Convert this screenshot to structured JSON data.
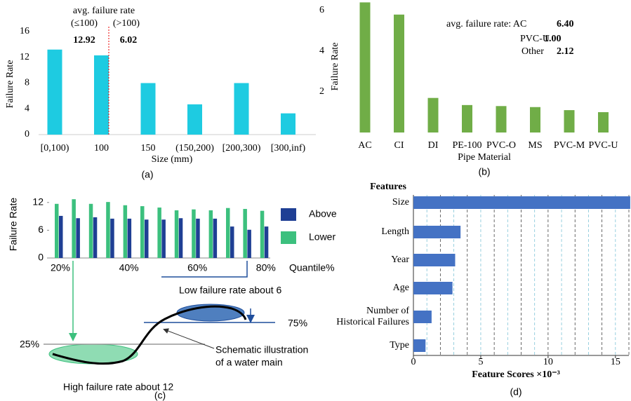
{
  "chart_data": [
    {
      "type": "bar",
      "ylabel": "Failure Rate",
      "xlabel": "Size (mm)",
      "caption": "(a)",
      "categories": [
        "[0,100)",
        "100",
        "150",
        "(150,200)",
        "[200,300)",
        "[300,inf)"
      ],
      "values": [
        13.2,
        12.3,
        8.0,
        4.7,
        8.0,
        3.3
      ],
      "color": "#1ecbe1",
      "ylim": [
        0,
        16
      ],
      "yticks": [
        0,
        4,
        8,
        12,
        16
      ],
      "annotations": [
        "avg. failure rate",
        "(≤100)",
        "(>100)",
        "12.92",
        "6.02"
      ]
    },
    {
      "type": "bar",
      "ylabel": "Failure Rate",
      "xlabel": "Pipe Material",
      "caption": "(b)",
      "categories": [
        "AC",
        "CI",
        "DI",
        "PE-100",
        "PVC-O",
        "MS",
        "PVC-M",
        "PVC-U"
      ],
      "values": [
        6.4,
        5.8,
        1.7,
        1.35,
        1.3,
        1.25,
        1.1,
        1.0
      ],
      "color": "#70ad47",
      "ylim": [
        0,
        6.5
      ],
      "yticks": [
        2,
        4,
        6
      ],
      "annotations": [
        "avg. failure rate: AC",
        "6.40",
        "PVC-U",
        "1.00",
        "Other",
        "2.12"
      ]
    },
    {
      "type": "grouped_bar",
      "ylabel": "Failure Rate",
      "xlabel": "Quantile%",
      "caption": "(c)",
      "categories": [
        "20%",
        null,
        null,
        null,
        "40%",
        null,
        null,
        null,
        "60%",
        null,
        null,
        null,
        "80%"
      ],
      "series": [
        {
          "name": "Above",
          "color": "#1f3f94",
          "values": [
            9.1,
            8.6,
            8.8,
            8.5,
            8.5,
            8.3,
            8.3,
            8.6,
            8.5,
            8.5,
            6.8,
            6.1,
            6.8
          ]
        },
        {
          "name": "Lower",
          "color": "#3cc07e",
          "values": [
            11.7,
            12.7,
            11.7,
            12.1,
            11.4,
            11.2,
            10.9,
            10.3,
            10.5,
            10.3,
            10.8,
            10.6,
            10.2
          ]
        }
      ],
      "ylim": [
        0,
        13.5
      ],
      "yticks": [
        0,
        6,
        12
      ],
      "annotations": [
        "Low failure rate about 6",
        "75%",
        "25%",
        "Schematic illustration",
        "of a water main",
        "High failure rate about 12"
      ]
    },
    {
      "type": "hbar",
      "title": "Features",
      "xlabel": "Feature Scores ×10⁻³",
      "caption": "(d)",
      "categories": [
        "Size",
        "Length",
        "Year",
        "Age",
        "Number of\nHistorical Failures",
        "Type"
      ],
      "values": [
        16.1,
        3.5,
        3.1,
        2.9,
        1.35,
        0.9
      ],
      "color": "#4472c4",
      "xlim": [
        0,
        16
      ],
      "xticks": [
        0,
        5,
        10,
        15
      ],
      "xgrid": [
        1,
        2,
        3,
        4,
        5,
        6,
        7,
        8,
        9,
        10,
        11,
        12,
        13,
        14,
        15,
        16
      ]
    }
  ]
}
